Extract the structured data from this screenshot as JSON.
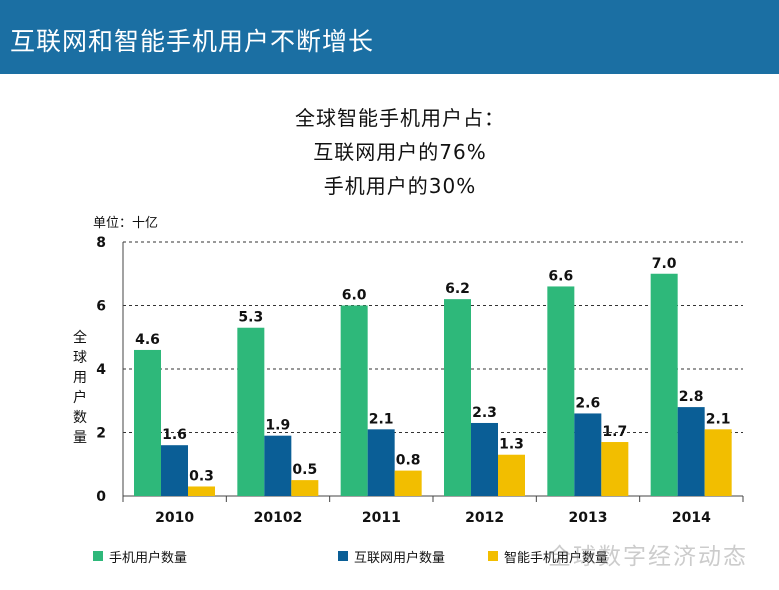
{
  "header": {
    "title": "互联网和智能手机用户不断增长"
  },
  "subtitle_lines": [
    "全球智能手机用户占：",
    "互联网用户的76%",
    "手机用户的30%"
  ],
  "chart_data": {
    "type": "bar",
    "categories": [
      "2010",
      "20102",
      "2011",
      "2012",
      "2013",
      "2014"
    ],
    "series": [
      {
        "name": "手机用户数量",
        "values": [
          4.6,
          5.3,
          6.0,
          6.2,
          6.6,
          7.0
        ],
        "color": "#2eb87a"
      },
      {
        "name": "互联网用户数量",
        "values": [
          1.6,
          1.9,
          2.1,
          2.3,
          2.6,
          2.8
        ],
        "color": "#0a5e96"
      },
      {
        "name": "智能手机用户数量",
        "values": [
          0.3,
          0.5,
          0.8,
          1.3,
          1.7,
          2.1
        ],
        "color": "#f2be00"
      }
    ],
    "ylim": [
      0,
      8
    ],
    "yticks": [
      0,
      2,
      4,
      6,
      8
    ],
    "unit_label": "单位：十亿",
    "ylabel": "全球用户数量",
    "grid": true,
    "legend_position": "bottom"
  },
  "watermark": "全球数字经济动态"
}
